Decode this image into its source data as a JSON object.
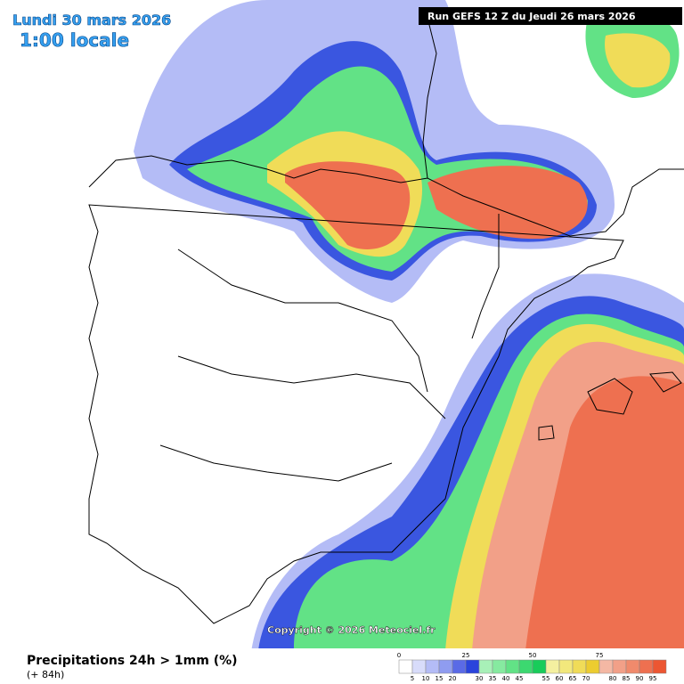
{
  "header": {
    "date": "Lundi 30 mars 2026",
    "time": "1:00 locale",
    "run": "Run GEFS 12 Z du Jeudi 26 mars 2026"
  },
  "copyright": "Copyright © 2026 Meteociel.fr",
  "legend": {
    "title": "Precipitations 24h > 1mm (%)",
    "subtitle": "(+ 84h)",
    "top_labels": [
      0,
      25,
      50,
      75
    ],
    "bottom_labels": [
      5,
      10,
      15,
      20,
      30,
      35,
      40,
      45,
      55,
      60,
      65,
      70,
      80,
      85,
      90,
      95
    ],
    "colors": [
      "#ffffff",
      "#d8dcfa",
      "#b4bcf6",
      "#8f9cf0",
      "#5a6ae6",
      "#2a44dc",
      "#a8f0b8",
      "#86eaa0",
      "#62e286",
      "#3cd870",
      "#18cc5a",
      "#f4f0a0",
      "#f2e87c",
      "#f0dc58",
      "#eccc30",
      "#f4b8a4",
      "#f2a088",
      "#f08a6c",
      "#ee7050",
      "#ec5632"
    ]
  }
}
